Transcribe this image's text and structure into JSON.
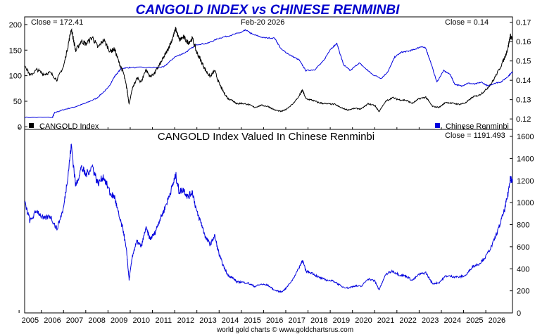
{
  "title": "CANGOLD INDEX vs CHINESE RENMINBI",
  "footer": "world gold charts © www.goldchartsrus.com",
  "colors": {
    "cangold": "#000000",
    "renminbi": "#0000dd",
    "frame": "#000000",
    "background": "#ffffff",
    "title": "#0000cc"
  },
  "chart_data": [
    {
      "type": "line",
      "date_label": "Feb-20  2026",
      "left_close_label": "Close = 172.41",
      "right_close_label": "Close = 0.14",
      "x_tick_labels": [
        "2005",
        "2006",
        "2007",
        "2008",
        "2009",
        "2010",
        "2011",
        "2012",
        "2013",
        "2014",
        "2015",
        "2016",
        "2017",
        "2018",
        "2019",
        "2020",
        "2021",
        "2022",
        "2023",
        "2024",
        "2025",
        "2026"
      ],
      "x_range": [
        2004.25,
        2026.2
      ],
      "left_axis": {
        "ylim": [
          -5,
          215
        ],
        "ticks": [
          0,
          50,
          100,
          150,
          200
        ]
      },
      "right_axis": {
        "ylim": [
          0.1146,
          0.1728
        ],
        "ticks": [
          "0.12",
          "0.13",
          "0.14",
          "0.15",
          "0.16",
          "0.17"
        ]
      },
      "series": [
        {
          "name": "CANGOLD Index",
          "axis": "left",
          "color": "#000000",
          "points": [
            [
              2004.25,
              122
            ],
            [
              2004.5,
              100
            ],
            [
              2004.8,
              112
            ],
            [
              2005.1,
              103
            ],
            [
              2005.4,
              106
            ],
            [
              2005.7,
              92
            ],
            [
              2006.0,
              118
            ],
            [
              2006.2,
              158
            ],
            [
              2006.35,
              192
            ],
            [
              2006.55,
              148
            ],
            [
              2006.8,
              168
            ],
            [
              2007.0,
              162
            ],
            [
              2007.3,
              175
            ],
            [
              2007.55,
              155
            ],
            [
              2007.8,
              170
            ],
            [
              2008.1,
              148
            ],
            [
              2008.3,
              152
            ],
            [
              2008.5,
              125
            ],
            [
              2008.7,
              105
            ],
            [
              2008.85,
              75
            ],
            [
              2008.95,
              45
            ],
            [
              2009.1,
              75
            ],
            [
              2009.3,
              95
            ],
            [
              2009.5,
              88
            ],
            [
              2009.7,
              112
            ],
            [
              2009.9,
              98
            ],
            [
              2010.1,
              105
            ],
            [
              2010.3,
              120
            ],
            [
              2010.5,
              135
            ],
            [
              2010.7,
              152
            ],
            [
              2010.9,
              172
            ],
            [
              2011.05,
              192
            ],
            [
              2011.2,
              170
            ],
            [
              2011.4,
              175
            ],
            [
              2011.6,
              165
            ],
            [
              2011.8,
              172
            ],
            [
              2012.0,
              145
            ],
            [
              2012.2,
              128
            ],
            [
              2012.4,
              110
            ],
            [
              2012.6,
              98
            ],
            [
              2012.8,
              110
            ],
            [
              2013.0,
              85
            ],
            [
              2013.2,
              68
            ],
            [
              2013.4,
              55
            ],
            [
              2013.6,
              52
            ],
            [
              2013.8,
              45
            ],
            [
              2014.0,
              46
            ],
            [
              2014.3,
              44
            ],
            [
              2014.6,
              38
            ],
            [
              2014.9,
              42
            ],
            [
              2015.2,
              40
            ],
            [
              2015.5,
              33
            ],
            [
              2015.8,
              30
            ],
            [
              2016.0,
              34
            ],
            [
              2016.3,
              44
            ],
            [
              2016.6,
              60
            ],
            [
              2016.75,
              72
            ],
            [
              2016.9,
              55
            ],
            [
              2017.2,
              52
            ],
            [
              2017.5,
              47
            ],
            [
              2017.8,
              45
            ],
            [
              2018.2,
              44
            ],
            [
              2018.5,
              37
            ],
            [
              2018.8,
              33
            ],
            [
              2019.1,
              36
            ],
            [
              2019.4,
              35
            ],
            [
              2019.7,
              45
            ],
            [
              2020.0,
              42
            ],
            [
              2020.2,
              30
            ],
            [
              2020.5,
              50
            ],
            [
              2020.8,
              57
            ],
            [
              2021.1,
              53
            ],
            [
              2021.4,
              52
            ],
            [
              2021.7,
              46
            ],
            [
              2022.0,
              55
            ],
            [
              2022.3,
              58
            ],
            [
              2022.6,
              40
            ],
            [
              2022.9,
              38
            ],
            [
              2023.2,
              48
            ],
            [
              2023.5,
              46
            ],
            [
              2023.8,
              44
            ],
            [
              2024.1,
              47
            ],
            [
              2024.4,
              58
            ],
            [
              2024.7,
              62
            ],
            [
              2025.0,
              72
            ],
            [
              2025.3,
              88
            ],
            [
              2025.6,
              112
            ],
            [
              2025.85,
              135
            ],
            [
              2026.0,
              155
            ],
            [
              2026.1,
              178
            ],
            [
              2026.2,
              172
            ]
          ]
        },
        {
          "name": "Chinese Renminbi",
          "axis": "right",
          "color": "#0000dd",
          "points": [
            [
              2004.25,
              0.1208
            ],
            [
              2005.5,
              0.1208
            ],
            [
              2005.6,
              0.1232
            ],
            [
              2006.0,
              0.1248
            ],
            [
              2006.5,
              0.1262
            ],
            [
              2007.0,
              0.1282
            ],
            [
              2007.5,
              0.1308
            ],
            [
              2008.0,
              0.136
            ],
            [
              2008.3,
              0.142
            ],
            [
              2008.6,
              0.1462
            ],
            [
              2009.0,
              0.1466
            ],
            [
              2010.0,
              0.1466
            ],
            [
              2010.5,
              0.1468
            ],
            [
              2011.0,
              0.152
            ],
            [
              2011.5,
              0.1545
            ],
            [
              2012.0,
              0.1585
            ],
            [
              2012.5,
              0.1592
            ],
            [
              2013.0,
              0.1618
            ],
            [
              2013.5,
              0.1632
            ],
            [
              2014.0,
              0.1648
            ],
            [
              2014.2,
              0.166
            ],
            [
              2014.5,
              0.1638
            ],
            [
              2015.0,
              0.162
            ],
            [
              2015.5,
              0.1618
            ],
            [
              2015.8,
              0.156
            ],
            [
              2016.2,
              0.153
            ],
            [
              2016.6,
              0.1505
            ],
            [
              2016.9,
              0.145
            ],
            [
              2017.3,
              0.1455
            ],
            [
              2017.7,
              0.15
            ],
            [
              2018.0,
              0.156
            ],
            [
              2018.3,
              0.159
            ],
            [
              2018.6,
              0.148
            ],
            [
              2018.9,
              0.145
            ],
            [
              2019.3,
              0.149
            ],
            [
              2019.6,
              0.146
            ],
            [
              2019.9,
              0.143
            ],
            [
              2020.3,
              0.141
            ],
            [
              2020.6,
              0.1445
            ],
            [
              2020.9,
              0.152
            ],
            [
              2021.2,
              0.1545
            ],
            [
              2021.5,
              0.155
            ],
            [
              2021.8,
              0.156
            ],
            [
              2022.1,
              0.1575
            ],
            [
              2022.3,
              0.1565
            ],
            [
              2022.5,
              0.15
            ],
            [
              2022.8,
              0.139
            ],
            [
              2023.1,
              0.145
            ],
            [
              2023.4,
              0.143
            ],
            [
              2023.6,
              0.138
            ],
            [
              2023.9,
              0.137
            ],
            [
              2024.2,
              0.1385
            ],
            [
              2024.5,
              0.138
            ],
            [
              2024.8,
              0.139
            ],
            [
              2025.1,
              0.137
            ],
            [
              2025.4,
              0.1385
            ],
            [
              2025.7,
              0.1392
            ],
            [
              2026.0,
              0.142
            ],
            [
              2026.2,
              0.1443
            ]
          ]
        }
      ]
    },
    {
      "type": "line",
      "title": "CANGOLD Index Valued In Chinese Renminbi",
      "close_label": "Close = 1191.493",
      "x_tick_labels": [
        "2005",
        "2006",
        "2007",
        "2008",
        "2009",
        "2010",
        "2011",
        "2012",
        "2013",
        "2014",
        "2015",
        "2016",
        "2017",
        "2018",
        "2019",
        "2020",
        "2021",
        "2022",
        "2023",
        "2024",
        "2025",
        "2026"
      ],
      "x_range": [
        2004.25,
        2026.2
      ],
      "ylim": [
        0,
        1600
      ],
      "y_ticks": [
        0,
        200,
        400,
        600,
        800,
        1000,
        1200,
        1400,
        1600
      ],
      "series": [
        {
          "name": "",
          "color": "#0000dd",
          "points": [
            [
              2004.25,
              1000
            ],
            [
              2004.5,
              830
            ],
            [
              2004.8,
              930
            ],
            [
              2005.1,
              850
            ],
            [
              2005.4,
              880
            ],
            [
              2005.7,
              760
            ],
            [
              2006.0,
              950
            ],
            [
              2006.2,
              1250
            ],
            [
              2006.35,
              1520
            ],
            [
              2006.55,
              1150
            ],
            [
              2006.8,
              1320
            ],
            [
              2007.0,
              1250
            ],
            [
              2007.3,
              1330
            ],
            [
              2007.55,
              1170
            ],
            [
              2007.8,
              1240
            ],
            [
              2008.1,
              1080
            ],
            [
              2008.3,
              1050
            ],
            [
              2008.5,
              870
            ],
            [
              2008.7,
              740
            ],
            [
              2008.85,
              530
            ],
            [
              2008.95,
              300
            ],
            [
              2009.1,
              520
            ],
            [
              2009.3,
              650
            ],
            [
              2009.5,
              600
            ],
            [
              2009.7,
              770
            ],
            [
              2009.9,
              670
            ],
            [
              2010.1,
              720
            ],
            [
              2010.3,
              830
            ],
            [
              2010.5,
              920
            ],
            [
              2010.7,
              1030
            ],
            [
              2010.9,
              1150
            ],
            [
              2011.05,
              1250
            ],
            [
              2011.2,
              1100
            ],
            [
              2011.4,
              1120
            ],
            [
              2011.6,
              1050
            ],
            [
              2011.8,
              1100
            ],
            [
              2012.0,
              910
            ],
            [
              2012.2,
              810
            ],
            [
              2012.4,
              680
            ],
            [
              2012.6,
              620
            ],
            [
              2012.8,
              700
            ],
            [
              2013.0,
              530
            ],
            [
              2013.2,
              420
            ],
            [
              2013.4,
              340
            ],
            [
              2013.6,
              320
            ],
            [
              2013.8,
              280
            ],
            [
              2014.0,
              280
            ],
            [
              2014.3,
              270
            ],
            [
              2014.6,
              240
            ],
            [
              2014.9,
              260
            ],
            [
              2015.2,
              250
            ],
            [
              2015.5,
              205
            ],
            [
              2015.8,
              190
            ],
            [
              2016.0,
              220
            ],
            [
              2016.3,
              300
            ],
            [
              2016.6,
              410
            ],
            [
              2016.75,
              480
            ],
            [
              2016.9,
              380
            ],
            [
              2017.2,
              360
            ],
            [
              2017.5,
              320
            ],
            [
              2017.8,
              300
            ],
            [
              2018.2,
              285
            ],
            [
              2018.5,
              240
            ],
            [
              2018.8,
              225
            ],
            [
              2019.1,
              245
            ],
            [
              2019.4,
              240
            ],
            [
              2019.7,
              310
            ],
            [
              2020.0,
              290
            ],
            [
              2020.2,
              210
            ],
            [
              2020.5,
              350
            ],
            [
              2020.8,
              380
            ],
            [
              2021.1,
              345
            ],
            [
              2021.4,
              335
            ],
            [
              2021.7,
              295
            ],
            [
              2022.0,
              350
            ],
            [
              2022.3,
              365
            ],
            [
              2022.6,
              265
            ],
            [
              2022.9,
              275
            ],
            [
              2023.2,
              335
            ],
            [
              2023.5,
              330
            ],
            [
              2023.8,
              325
            ],
            [
              2024.1,
              340
            ],
            [
              2024.4,
              420
            ],
            [
              2024.7,
              445
            ],
            [
              2025.0,
              510
            ],
            [
              2025.3,
              620
            ],
            [
              2025.6,
              780
            ],
            [
              2025.85,
              940
            ],
            [
              2026.0,
              1080
            ],
            [
              2026.1,
              1230
            ],
            [
              2026.2,
              1191
            ]
          ]
        }
      ]
    }
  ]
}
